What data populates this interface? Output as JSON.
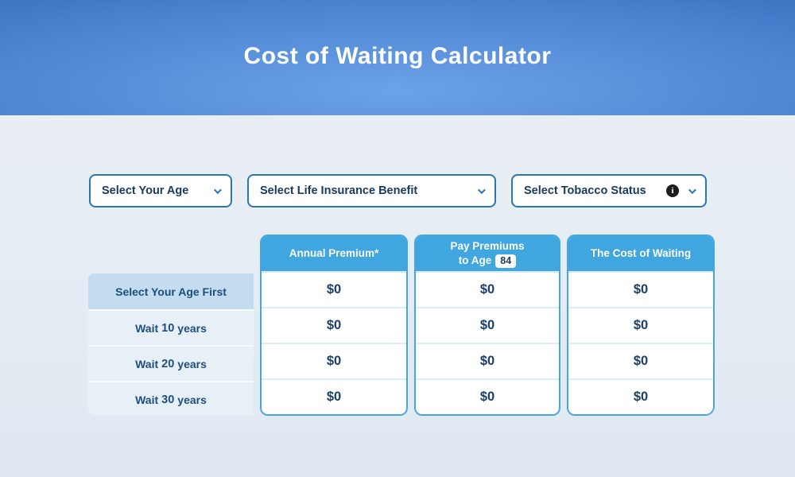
{
  "header": {
    "title": "Cost of Waiting Calculator"
  },
  "filters": {
    "age": {
      "label": "Select Your Age"
    },
    "benefit": {
      "label": "Select Life Insurance Benefit"
    },
    "tobacco": {
      "label": "Select Tobacco Status",
      "info_icon": "i"
    }
  },
  "table": {
    "columns": {
      "premium": {
        "title": "Annual Premium*"
      },
      "pay_to_age": {
        "line1": "Pay Premiums",
        "line2": "to Age",
        "age_badge": "84"
      },
      "cost_of_waiting": {
        "title": "The Cost of Waiting"
      }
    },
    "row_labels": {
      "r0": {
        "text": "Select Your Age First"
      },
      "r1": {
        "prefix": "Wait",
        "number": "10",
        "suffix": "years"
      },
      "r2": {
        "prefix": "Wait",
        "number": "20",
        "suffix": "years"
      },
      "r3": {
        "prefix": "Wait",
        "number": "30",
        "suffix": "years"
      }
    },
    "values": {
      "premium": [
        "$0",
        "$0",
        "$0",
        "$0"
      ],
      "pay_to_age": [
        "$0",
        "$0",
        "$0",
        "$0"
      ],
      "cost_of_waiting": [
        "$0",
        "$0",
        "$0",
        "$0"
      ]
    }
  },
  "colors": {
    "banner_center": "#6ba2e8",
    "banner_edge": "#1e4c9e",
    "table_header": "#3fa6e0",
    "card_border": "#45a7e2",
    "highlight_row": "#c3dcee",
    "navy_text": "#1d4e7e",
    "dropdown_border": "#2d74b5",
    "page_background": "#e9eef5"
  }
}
